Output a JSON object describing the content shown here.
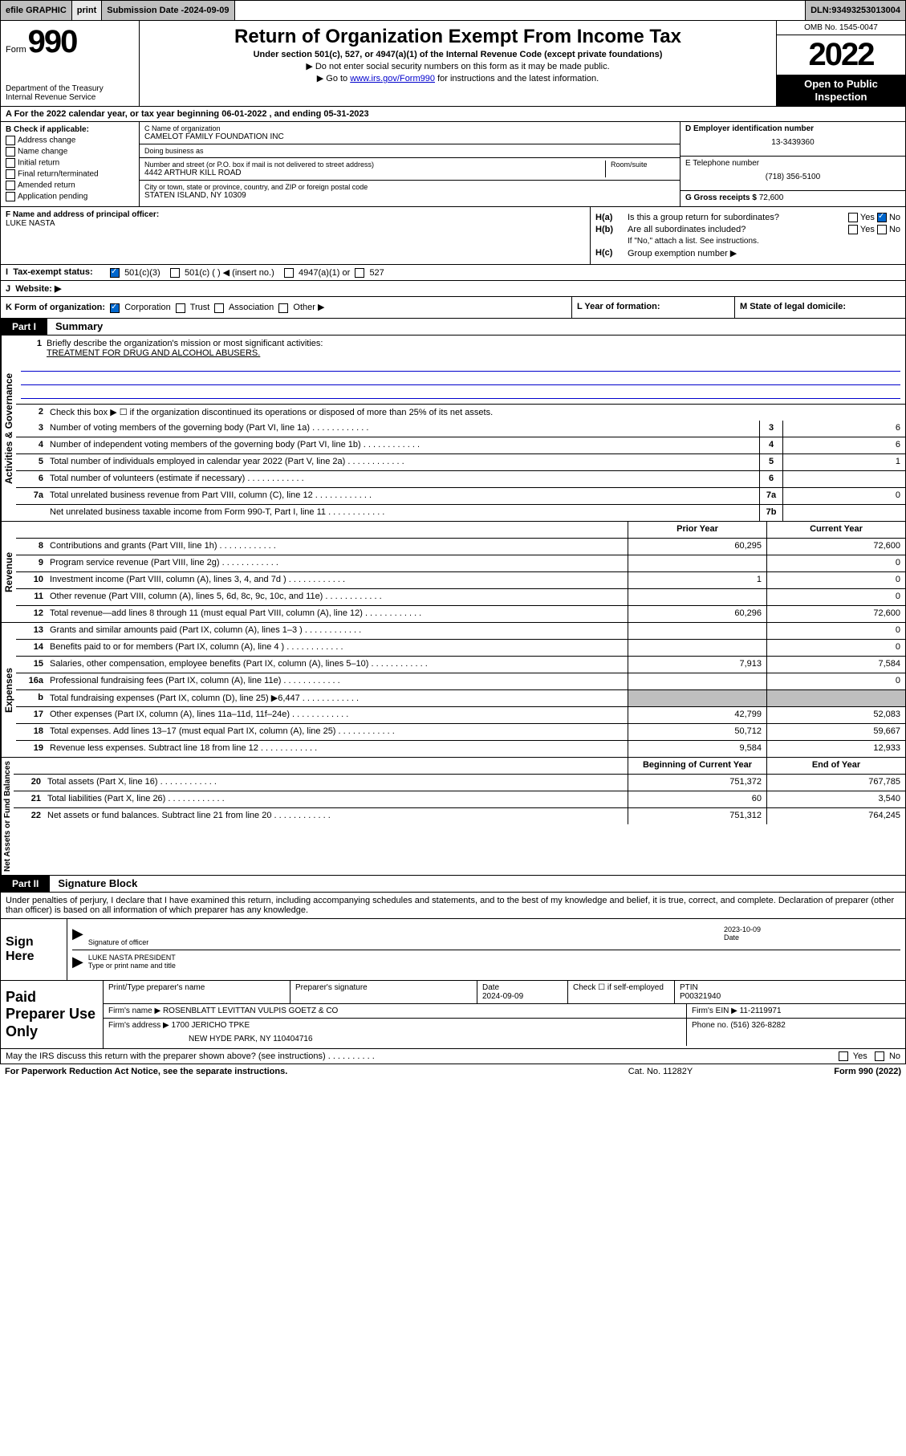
{
  "topbar": {
    "efile": "efile GRAPHIC",
    "print": "print",
    "sub_date_label": "Submission Date - ",
    "sub_date": "2024-09-09",
    "dln_label": "DLN: ",
    "dln": "93493253013004"
  },
  "header": {
    "form_word": "Form",
    "form_num": "990",
    "dept": "Department of the Treasury",
    "irs": "Internal Revenue Service",
    "title": "Return of Organization Exempt From Income Tax",
    "sub1": "Under section 501(c), 527, or 4947(a)(1) of the Internal Revenue Code (except private foundations)",
    "sub2": "▶ Do not enter social security numbers on this form as it may be made public.",
    "sub3_pre": "▶ Go to ",
    "sub3_link": "www.irs.gov/Form990",
    "sub3_post": " for instructions and the latest information.",
    "omb": "OMB No. 1545-0047",
    "year": "2022",
    "open": "Open to Public Inspection"
  },
  "row_a": {
    "text_pre": "A For the 2022 calendar year, or tax year beginning ",
    "begin": "06-01-2022",
    "mid": " , and ending ",
    "end": "05-31-2023"
  },
  "b": {
    "label": "B Check if applicable:",
    "opts": [
      "Address change",
      "Name change",
      "Initial return",
      "Final return/terminated",
      "Amended return",
      "Application pending"
    ]
  },
  "c": {
    "name_label": "C Name of organization",
    "name": "CAMELOT FAMILY FOUNDATION INC",
    "dba_label": "Doing business as",
    "dba": "",
    "addr_label": "Number and street (or P.O. box if mail is not delivered to street address)",
    "room_label": "Room/suite",
    "addr": "4442 ARTHUR KILL ROAD",
    "city_label": "City or town, state or province, country, and ZIP or foreign postal code",
    "city": "STATEN ISLAND, NY  10309"
  },
  "d": {
    "label": "D Employer identification number",
    "val": "13-3439360"
  },
  "e": {
    "label": "E Telephone number",
    "val": "(718) 356-5100"
  },
  "g": {
    "label": "G Gross receipts $ ",
    "val": "72,600"
  },
  "f": {
    "label": "F Name and address of principal officer:",
    "name": "LUKE NASTA"
  },
  "h": {
    "a_label": "H(a)",
    "a_text": "Is this a group return for subordinates?",
    "a_yes": "Yes",
    "a_no": "No",
    "b_label": "H(b)",
    "b_text": "Are all subordinates included?",
    "b_yes": "Yes",
    "b_no": "No",
    "b_note": "If \"No,\" attach a list. See instructions.",
    "c_label": "H(c)",
    "c_text": "Group exemption number ▶"
  },
  "i": {
    "label": "I",
    "text": "Tax-exempt status:",
    "opt1": "501(c)(3)",
    "opt2": "501(c) (  ) ◀ (insert no.)",
    "opt3": "4947(a)(1) or",
    "opt4": "527"
  },
  "j": {
    "label": "J",
    "text": "Website: ▶"
  },
  "k": {
    "label": "K Form of organization:",
    "opts": [
      "Corporation",
      "Trust",
      "Association",
      "Other ▶"
    ]
  },
  "l": {
    "label": "L Year of formation:"
  },
  "m": {
    "label": "M State of legal domicile:"
  },
  "part1": {
    "tab": "Part I",
    "title": "Summary"
  },
  "mission": {
    "num": "1",
    "label": "Briefly describe the organization's mission or most significant activities:",
    "text": "TREATMENT FOR DRUG AND ALCOHOL ABUSERS."
  },
  "line2": {
    "num": "2",
    "text": "Check this box ▶ ☐ if the organization discontinued its operations or disposed of more than 25% of its net assets."
  },
  "gov_label": "Activities & Governance",
  "rev_label": "Revenue",
  "exp_label": "Expenses",
  "net_label": "Net Assets or Fund Balances",
  "lines_gov": [
    {
      "n": "3",
      "d": "Number of voting members of the governing body (Part VI, line 1a)",
      "b": "3",
      "v": "6"
    },
    {
      "n": "4",
      "d": "Number of independent voting members of the governing body (Part VI, line 1b)",
      "b": "4",
      "v": "6"
    },
    {
      "n": "5",
      "d": "Total number of individuals employed in calendar year 2022 (Part V, line 2a)",
      "b": "5",
      "v": "1"
    },
    {
      "n": "6",
      "d": "Total number of volunteers (estimate if necessary)",
      "b": "6",
      "v": ""
    },
    {
      "n": "7a",
      "d": "Total unrelated business revenue from Part VIII, column (C), line 12",
      "b": "7a",
      "v": "0"
    },
    {
      "n": "",
      "d": "Net unrelated business taxable income from Form 990-T, Part I, line 11",
      "b": "7b",
      "v": ""
    }
  ],
  "cols": {
    "prior": "Prior Year",
    "curr": "Current Year"
  },
  "lines_rev": [
    {
      "n": "8",
      "d": "Contributions and grants (Part VIII, line 1h)",
      "p": "60,295",
      "c": "72,600"
    },
    {
      "n": "9",
      "d": "Program service revenue (Part VIII, line 2g)",
      "p": "",
      "c": "0"
    },
    {
      "n": "10",
      "d": "Investment income (Part VIII, column (A), lines 3, 4, and 7d )",
      "p": "1",
      "c": "0"
    },
    {
      "n": "11",
      "d": "Other revenue (Part VIII, column (A), lines 5, 6d, 8c, 9c, 10c, and 11e)",
      "p": "",
      "c": "0"
    },
    {
      "n": "12",
      "d": "Total revenue—add lines 8 through 11 (must equal Part VIII, column (A), line 12)",
      "p": "60,296",
      "c": "72,600"
    }
  ],
  "lines_exp": [
    {
      "n": "13",
      "d": "Grants and similar amounts paid (Part IX, column (A), lines 1–3 )",
      "p": "",
      "c": "0"
    },
    {
      "n": "14",
      "d": "Benefits paid to or for members (Part IX, column (A), line 4 )",
      "p": "",
      "c": "0"
    },
    {
      "n": "15",
      "d": "Salaries, other compensation, employee benefits (Part IX, column (A), lines 5–10)",
      "p": "7,913",
      "c": "7,584"
    },
    {
      "n": "16a",
      "d": "Professional fundraising fees (Part IX, column (A), line 11e)",
      "p": "",
      "c": "0"
    },
    {
      "n": "b",
      "d": "Total fundraising expenses (Part IX, column (D), line 25) ▶6,447",
      "p": "shaded",
      "c": "shaded"
    },
    {
      "n": "17",
      "d": "Other expenses (Part IX, column (A), lines 11a–11d, 11f–24e)",
      "p": "42,799",
      "c": "52,083"
    },
    {
      "n": "18",
      "d": "Total expenses. Add lines 13–17 (must equal Part IX, column (A), line 25)",
      "p": "50,712",
      "c": "59,667"
    },
    {
      "n": "19",
      "d": "Revenue less expenses. Subtract line 18 from line 12",
      "p": "9,584",
      "c": "12,933"
    }
  ],
  "cols2": {
    "begin": "Beginning of Current Year",
    "end": "End of Year"
  },
  "lines_net": [
    {
      "n": "20",
      "d": "Total assets (Part X, line 16)",
      "p": "751,372",
      "c": "767,785"
    },
    {
      "n": "21",
      "d": "Total liabilities (Part X, line 26)",
      "p": "60",
      "c": "3,540"
    },
    {
      "n": "22",
      "d": "Net assets or fund balances. Subtract line 21 from line 20",
      "p": "751,312",
      "c": "764,245"
    }
  ],
  "part2": {
    "tab": "Part II",
    "title": "Signature Block"
  },
  "penalties": "Under penalties of perjury, I declare that I have examined this return, including accompanying schedules and statements, and to the best of my knowledge and belief, it is true, correct, and complete. Declaration of preparer (other than officer) is based on all information of which preparer has any knowledge.",
  "sign": {
    "label": "Sign Here",
    "sig_label": "Signature of officer",
    "date_label": "Date",
    "date": "2023-10-09",
    "name": "LUKE NASTA PRESIDENT",
    "name_label": "Type or print name and title"
  },
  "paid": {
    "label": "Paid Preparer Use Only",
    "r1": {
      "c1": "Print/Type preparer's name",
      "c2": "Preparer's signature",
      "c3_label": "Date",
      "c3": "2024-09-09",
      "c4_label": "Check ☐ if self-employed",
      "c5_label": "PTIN",
      "c5": "P00321940"
    },
    "r2": {
      "c1_label": "Firm's name    ▶ ",
      "c1": "ROSENBLATT LEVITTAN VULPIS GOETZ & CO",
      "c2_label": "Firm's EIN ▶ ",
      "c2": "11-2119971"
    },
    "r3": {
      "c1_label": "Firm's address ▶ ",
      "c1": "1700 JERICHO TPKE",
      "c1b": "NEW HYDE PARK, NY  110404716",
      "c2_label": "Phone no. ",
      "c2": "(516) 326-8282"
    }
  },
  "discuss": {
    "text": "May the IRS discuss this return with the preparer shown above? (see instructions)",
    "yes": "Yes",
    "no": "No"
  },
  "footer": {
    "left": "For Paperwork Reduction Act Notice, see the separate instructions.",
    "mid": "Cat. No. 11282Y",
    "right": "Form 990 (2022)"
  }
}
